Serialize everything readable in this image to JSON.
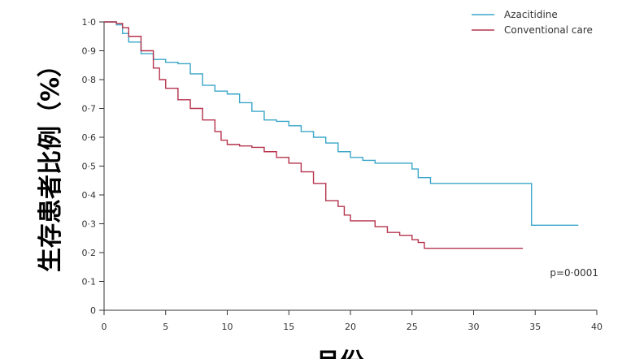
{
  "chart_data": {
    "type": "line",
    "ylabel": "生存患者比例（%）",
    "xlabel": "月份",
    "xlim": [
      0,
      40
    ],
    "ylim": [
      0,
      1.0
    ],
    "x_ticks": [
      0,
      5,
      10,
      15,
      20,
      25,
      30,
      35,
      40
    ],
    "x_tick_labels": [
      "0",
      "5",
      "10",
      "15",
      "20",
      "25",
      "30",
      "35",
      "40"
    ],
    "y_ticks": [
      0,
      0.1,
      0.2,
      0.3,
      0.4,
      0.5,
      0.6,
      0.7,
      0.8,
      0.9,
      1.0
    ],
    "y_tick_labels": [
      "0",
      "0·1",
      "0·2",
      "0·3",
      "0·4",
      "0·5",
      "0·6",
      "0·7",
      "0·8",
      "0·9",
      "1·0"
    ],
    "legend": "top-right",
    "annotation": "p=0·0001",
    "colors": {
      "azacitidine": "#3aa6c9",
      "conventional": "#b5334c",
      "axis": "#333333"
    },
    "series": [
      {
        "name": "Azacitidine",
        "color": "#3aa6c9",
        "points": [
          [
            0,
            1.0
          ],
          [
            0.5,
            1.0
          ],
          [
            1,
            0.99
          ],
          [
            1.5,
            0.96
          ],
          [
            2,
            0.93
          ],
          [
            3,
            0.89
          ],
          [
            4,
            0.87
          ],
          [
            5,
            0.86
          ],
          [
            6,
            0.855
          ],
          [
            7,
            0.82
          ],
          [
            8,
            0.78
          ],
          [
            9,
            0.76
          ],
          [
            10,
            0.75
          ],
          [
            11,
            0.72
          ],
          [
            12,
            0.69
          ],
          [
            13,
            0.66
          ],
          [
            14,
            0.655
          ],
          [
            15,
            0.64
          ],
          [
            16,
            0.62
          ],
          [
            17,
            0.6
          ],
          [
            18,
            0.58
          ],
          [
            19,
            0.55
          ],
          [
            20,
            0.53
          ],
          [
            21,
            0.52
          ],
          [
            22,
            0.51
          ],
          [
            24,
            0.51
          ],
          [
            25,
            0.49
          ],
          [
            25.5,
            0.46
          ],
          [
            26,
            0.46
          ],
          [
            26.5,
            0.44
          ],
          [
            30,
            0.44
          ],
          [
            34,
            0.44
          ],
          [
            34.7,
            0.44
          ],
          [
            34.7,
            0.295
          ],
          [
            38.5,
            0.295
          ]
        ]
      },
      {
        "name": "Conventional care",
        "color": "#b5334c",
        "points": [
          [
            0,
            1.0
          ],
          [
            1,
            0.995
          ],
          [
            1.5,
            0.98
          ],
          [
            2,
            0.95
          ],
          [
            3,
            0.9
          ],
          [
            4,
            0.84
          ],
          [
            4.5,
            0.8
          ],
          [
            5,
            0.77
          ],
          [
            6,
            0.73
          ],
          [
            7,
            0.7
          ],
          [
            8,
            0.66
          ],
          [
            9,
            0.62
          ],
          [
            9.5,
            0.59
          ],
          [
            10,
            0.575
          ],
          [
            11,
            0.57
          ],
          [
            12,
            0.565
          ],
          [
            13,
            0.55
          ],
          [
            14,
            0.53
          ],
          [
            15,
            0.51
          ],
          [
            16,
            0.48
          ],
          [
            17,
            0.44
          ],
          [
            18,
            0.38
          ],
          [
            19,
            0.36
          ],
          [
            19.5,
            0.33
          ],
          [
            20,
            0.31
          ],
          [
            21,
            0.31
          ],
          [
            22,
            0.29
          ],
          [
            23,
            0.27
          ],
          [
            24,
            0.26
          ],
          [
            25,
            0.245
          ],
          [
            25.5,
            0.235
          ],
          [
            26,
            0.215
          ],
          [
            30,
            0.215
          ],
          [
            34,
            0.215
          ]
        ]
      }
    ]
  }
}
